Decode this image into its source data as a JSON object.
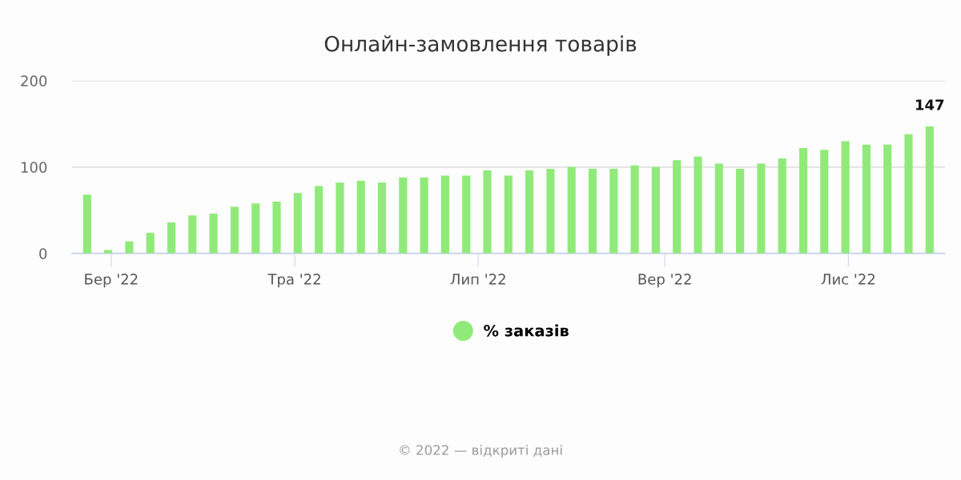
{
  "chart_data": {
    "type": "bar",
    "title": "Онлайн-замовлення товарів",
    "x": [
      "2022-02-21",
      "2022-02-28",
      "2022-03-07",
      "2022-03-14",
      "2022-03-21",
      "2022-03-28",
      "2022-04-04",
      "2022-04-11",
      "2022-04-18",
      "2022-04-25",
      "2022-05-02",
      "2022-05-09",
      "2022-05-16",
      "2022-05-23",
      "2022-05-30",
      "2022-06-06",
      "2022-06-13",
      "2022-06-20",
      "2022-06-27",
      "2022-07-04",
      "2022-07-11",
      "2022-07-18",
      "2022-07-25",
      "2022-08-01",
      "2022-08-08",
      "2022-08-15",
      "2022-08-22",
      "2022-08-29",
      "2022-09-05",
      "2022-09-12",
      "2022-09-19",
      "2022-09-26",
      "2022-10-03",
      "2022-10-10",
      "2022-10-17",
      "2022-10-24",
      "2022-10-31",
      "2022-11-07",
      "2022-11-14",
      "2022-11-21",
      "2022-11-28"
    ],
    "series": [
      {
        "name": "% заказів",
        "color": "#90ea7a",
        "values": [
          68,
          4,
          14,
          24,
          36,
          44,
          46,
          54,
          58,
          60,
          70,
          78,
          82,
          84,
          82,
          88,
          88,
          90,
          90,
          96,
          90,
          96,
          98,
          100,
          98,
          98,
          102,
          100,
          108,
          112,
          104,
          98,
          104,
          110,
          122,
          120,
          130,
          126,
          126,
          138,
          147
        ],
        "value_labels": [
          null,
          null,
          null,
          null,
          null,
          null,
          null,
          null,
          null,
          null,
          null,
          null,
          null,
          null,
          null,
          null,
          null,
          null,
          null,
          null,
          null,
          null,
          null,
          null,
          null,
          null,
          null,
          null,
          null,
          null,
          null,
          null,
          null,
          null,
          null,
          null,
          null,
          null,
          null,
          null,
          "147"
        ]
      }
    ],
    "xlim": [
      "2022-02-16",
      "2022-12-03"
    ],
    "xticks": [
      {
        "value": "2022-03-01",
        "label": "Бер '22"
      },
      {
        "value": "2022-05-01",
        "label": "Тра '22"
      },
      {
        "value": "2022-07-01",
        "label": "Лип '22"
      },
      {
        "value": "2022-09-01",
        "label": "Вер '22"
      },
      {
        "value": "2022-11-01",
        "label": "Лис '22"
      }
    ],
    "ylim": [
      0,
      200
    ],
    "yticks": [
      0,
      100,
      200
    ],
    "grid": "y",
    "legend": "bottom",
    "marker": "circle",
    "annotations": [
      "© 2022 — відкриті дані"
    ]
  }
}
